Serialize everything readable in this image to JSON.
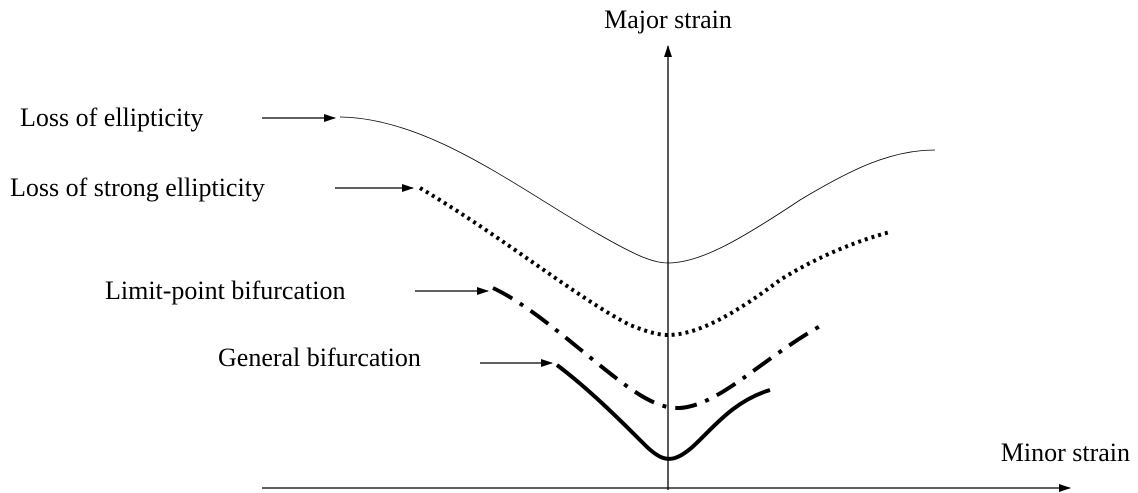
{
  "axes": {
    "y_label": "Major strain",
    "x_label": "Minor strain"
  },
  "curves": [
    {
      "label": "Loss of ellipticity"
    },
    {
      "label": "Loss of strong ellipticity"
    },
    {
      "label": "Limit-point bifurcation"
    },
    {
      "label": "General bifurcation"
    }
  ]
}
